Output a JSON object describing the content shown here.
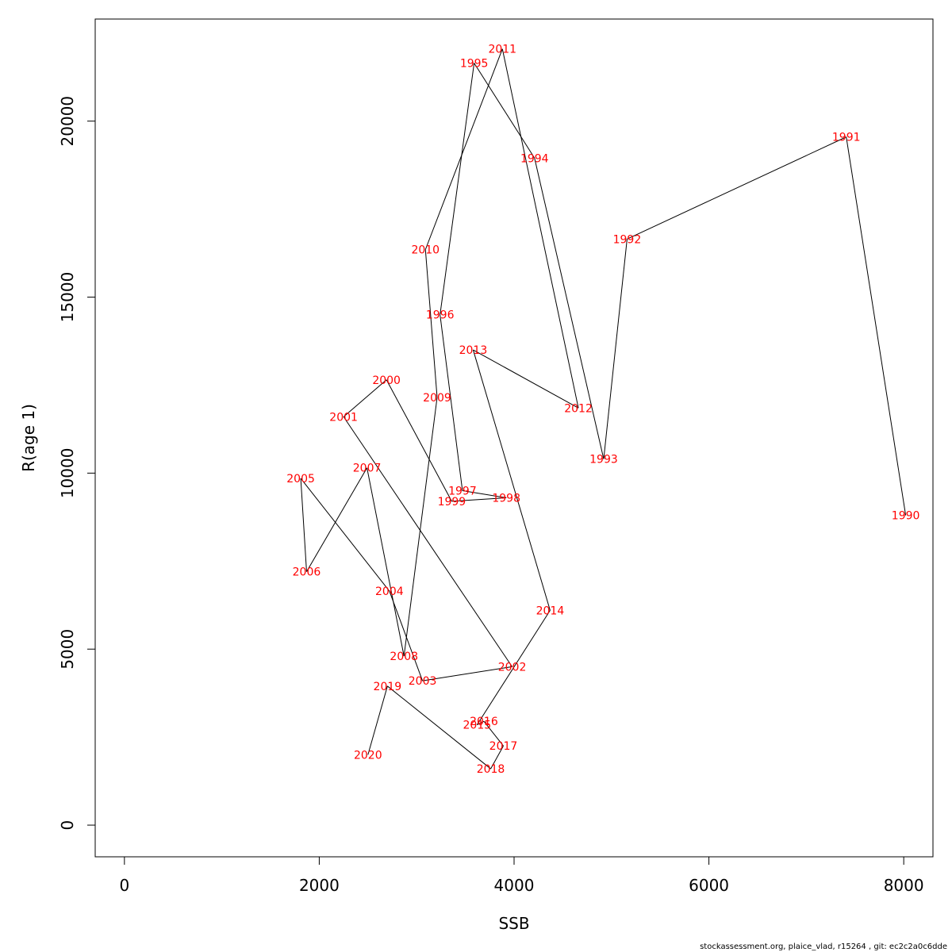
{
  "chart_data": {
    "type": "line",
    "xlabel": "SSB",
    "ylabel": "R(age 1)",
    "xlim": [
      -300,
      8300
    ],
    "ylim": [
      -900,
      22900
    ],
    "xticks": [
      0,
      2000,
      4000,
      6000,
      8000
    ],
    "yticks": [
      0,
      5000,
      10000,
      15000,
      20000
    ],
    "grid": false,
    "line_color": "#000000",
    "label_color": "#ff0000",
    "points": [
      {
        "year": "1990",
        "x": 8020,
        "y": 8800
      },
      {
        "year": "1991",
        "x": 7410,
        "y": 19550
      },
      {
        "year": "1992",
        "x": 5160,
        "y": 16650
      },
      {
        "year": "1993",
        "x": 4920,
        "y": 10400
      },
      {
        "year": "1994",
        "x": 4210,
        "y": 18950
      },
      {
        "year": "1995",
        "x": 3590,
        "y": 21650
      },
      {
        "year": "1996",
        "x": 3240,
        "y": 14500
      },
      {
        "year": "1997",
        "x": 3470,
        "y": 9500
      },
      {
        "year": "1998",
        "x": 3920,
        "y": 9300
      },
      {
        "year": "1999",
        "x": 3360,
        "y": 9200
      },
      {
        "year": "2000",
        "x": 2690,
        "y": 12650
      },
      {
        "year": "2001",
        "x": 2250,
        "y": 11600
      },
      {
        "year": "2002",
        "x": 3980,
        "y": 4500
      },
      {
        "year": "2003",
        "x": 3060,
        "y": 4100
      },
      {
        "year": "2004",
        "x": 2720,
        "y": 6650
      },
      {
        "year": "2005",
        "x": 1810,
        "y": 9850
      },
      {
        "year": "2006",
        "x": 1870,
        "y": 7200
      },
      {
        "year": "2007",
        "x": 2490,
        "y": 10150
      },
      {
        "year": "2008",
        "x": 2870,
        "y": 4800
      },
      {
        "year": "2009",
        "x": 3210,
        "y": 12150
      },
      {
        "year": "2010",
        "x": 3090,
        "y": 16350
      },
      {
        "year": "2011",
        "x": 3880,
        "y": 22050
      },
      {
        "year": "2012",
        "x": 4660,
        "y": 11850
      },
      {
        "year": "2013",
        "x": 3580,
        "y": 13500
      },
      {
        "year": "2014",
        "x": 4370,
        "y": 6100
      },
      {
        "year": "2015",
        "x": 3620,
        "y": 2850
      },
      {
        "year": "2016",
        "x": 3690,
        "y": 2950
      },
      {
        "year": "2017",
        "x": 3890,
        "y": 2250
      },
      {
        "year": "2018",
        "x": 3760,
        "y": 1600
      },
      {
        "year": "2019",
        "x": 2700,
        "y": 3950
      },
      {
        "year": "2020",
        "x": 2500,
        "y": 2000
      }
    ]
  },
  "footer": "stockassessment.org, plaice_vlad, r15264 , git: ec2c2a0c6dde"
}
